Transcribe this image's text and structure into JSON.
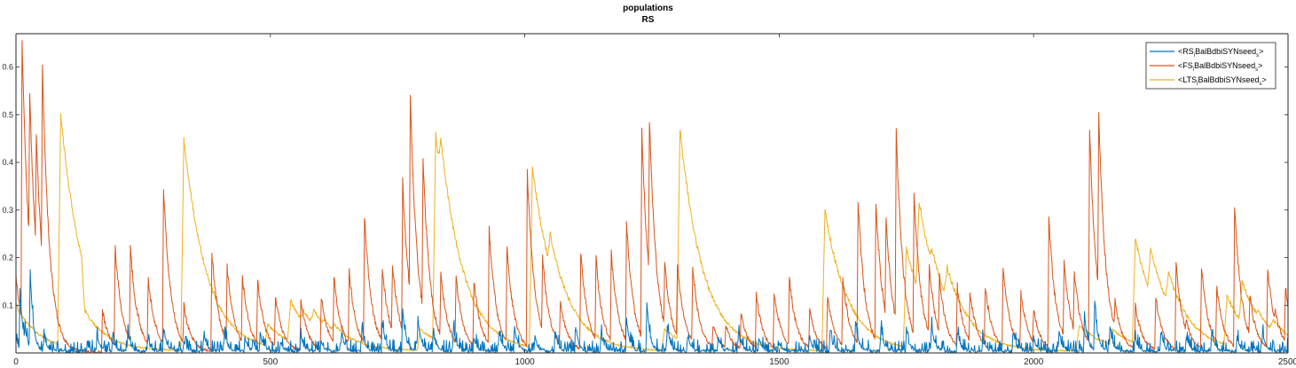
{
  "chart_data": {
    "type": "line",
    "title": "populations",
    "subtitle": "RS",
    "xlabel": "",
    "ylabel": "",
    "xlim": [
      0,
      2500
    ],
    "ylim": [
      0,
      0.67
    ],
    "x_ticks": [
      0,
      500,
      1000,
      1500,
      2000,
      2500
    ],
    "y_ticks": [
      0.1,
      0.2,
      0.3,
      0.4,
      0.5,
      0.6
    ],
    "grid": false,
    "legend_position": "top-right",
    "series": [
      {
        "name": "<RS_{BalBdbiSYNseed_s}>",
        "legend_main": "<RS",
        "legend_sub1": "i",
        "legend_mid": "BalBdbiSYNseed",
        "legend_sub2": "s",
        "legend_end": ">",
        "color": "#0072BD",
        "baseline": 0.0,
        "points": [
          [
            0,
            0.03
          ],
          [
            8,
            0.13
          ],
          [
            18,
            0.05
          ],
          [
            28,
            0.17
          ],
          [
            40,
            0.02
          ],
          [
            55,
            0.03
          ],
          [
            80,
            0.0
          ],
          [
            140,
            0.01
          ],
          [
            160,
            0.03
          ],
          [
            190,
            0.03
          ],
          [
            220,
            0.04
          ],
          [
            260,
            0.02
          ],
          [
            290,
            0.05
          ],
          [
            330,
            0.02
          ],
          [
            370,
            0.03
          ],
          [
            410,
            0.04
          ],
          [
            450,
            0.03
          ],
          [
            480,
            0.04
          ],
          [
            520,
            0.02
          ],
          [
            560,
            0.03
          ],
          [
            600,
            0.02
          ],
          [
            640,
            0.04
          ],
          [
            680,
            0.05
          ],
          [
            720,
            0.06
          ],
          [
            760,
            0.09
          ],
          [
            790,
            0.07
          ],
          [
            820,
            0.04
          ],
          [
            860,
            0.05
          ],
          [
            900,
            0.03
          ],
          [
            950,
            0.04
          ],
          [
            980,
            0.05
          ],
          [
            1020,
            0.03
          ],
          [
            1060,
            0.04
          ],
          [
            1100,
            0.05
          ],
          [
            1150,
            0.04
          ],
          [
            1200,
            0.07
          ],
          [
            1240,
            0.1
          ],
          [
            1280,
            0.05
          ],
          [
            1320,
            0.03
          ],
          [
            1380,
            0.03
          ],
          [
            1420,
            0.04
          ],
          [
            1460,
            0.03
          ],
          [
            1500,
            0.02
          ],
          [
            1560,
            0.03
          ],
          [
            1600,
            0.04
          ],
          [
            1650,
            0.06
          ],
          [
            1700,
            0.05
          ],
          [
            1750,
            0.04
          ],
          [
            1800,
            0.05
          ],
          [
            1850,
            0.04
          ],
          [
            1900,
            0.03
          ],
          [
            1960,
            0.04
          ],
          [
            2000,
            0.03
          ],
          [
            2050,
            0.04
          ],
          [
            2100,
            0.08
          ],
          [
            2120,
            0.1
          ],
          [
            2150,
            0.05
          ],
          [
            2200,
            0.03
          ],
          [
            2250,
            0.04
          ],
          [
            2300,
            0.03
          ],
          [
            2350,
            0.04
          ],
          [
            2400,
            0.03
          ],
          [
            2450,
            0.04
          ],
          [
            2500,
            0.03
          ]
        ]
      },
      {
        "name": "<FS_{BalBdbiSYNseed_s}>",
        "legend_main": "<FS",
        "legend_sub1": "i",
        "legend_mid": "BalBdbiSYNseed",
        "legend_sub2": "s",
        "legend_end": ">",
        "color": "#D95319",
        "baseline": 0.002,
        "points": [
          [
            0,
            0.16
          ],
          [
            12,
            0.66
          ],
          [
            27,
            0.55
          ],
          [
            40,
            0.46
          ],
          [
            52,
            0.6
          ],
          [
            170,
            0.09
          ],
          [
            195,
            0.22
          ],
          [
            225,
            0.22
          ],
          [
            260,
            0.16
          ],
          [
            290,
            0.35
          ],
          [
            330,
            0.1
          ],
          [
            385,
            0.21
          ],
          [
            415,
            0.18
          ],
          [
            445,
            0.16
          ],
          [
            475,
            0.15
          ],
          [
            510,
            0.12
          ],
          [
            560,
            0.11
          ],
          [
            600,
            0.12
          ],
          [
            625,
            0.16
          ],
          [
            655,
            0.17
          ],
          [
            685,
            0.29
          ],
          [
            720,
            0.18
          ],
          [
            740,
            0.19
          ],
          [
            760,
            0.36
          ],
          [
            775,
            0.54
          ],
          [
            800,
            0.41
          ],
          [
            835,
            0.17
          ],
          [
            865,
            0.16
          ],
          [
            900,
            0.15
          ],
          [
            930,
            0.26
          ],
          [
            965,
            0.22
          ],
          [
            1005,
            0.38
          ],
          [
            1035,
            0.2
          ],
          [
            1070,
            0.11
          ],
          [
            1110,
            0.21
          ],
          [
            1140,
            0.2
          ],
          [
            1170,
            0.21
          ],
          [
            1200,
            0.27
          ],
          [
            1230,
            0.47
          ],
          [
            1245,
            0.49
          ],
          [
            1275,
            0.19
          ],
          [
            1300,
            0.19
          ],
          [
            1330,
            0.18
          ],
          [
            1370,
            0.06
          ],
          [
            1395,
            0.06
          ],
          [
            1425,
            0.08
          ],
          [
            1455,
            0.12
          ],
          [
            1490,
            0.13
          ],
          [
            1520,
            0.16
          ],
          [
            1560,
            0.09
          ],
          [
            1595,
            0.12
          ],
          [
            1625,
            0.16
          ],
          [
            1655,
            0.32
          ],
          [
            1690,
            0.32
          ],
          [
            1710,
            0.28
          ],
          [
            1730,
            0.47
          ],
          [
            1765,
            0.33
          ],
          [
            1795,
            0.18
          ],
          [
            1815,
            0.16
          ],
          [
            1850,
            0.14
          ],
          [
            1875,
            0.13
          ],
          [
            1905,
            0.14
          ],
          [
            1940,
            0.18
          ],
          [
            1975,
            0.13
          ],
          [
            2000,
            0.09
          ],
          [
            2030,
            0.28
          ],
          [
            2060,
            0.19
          ],
          [
            2080,
            0.17
          ],
          [
            2110,
            0.47
          ],
          [
            2128,
            0.5
          ],
          [
            2160,
            0.11
          ],
          [
            2200,
            0.1
          ],
          [
            2240,
            0.12
          ],
          [
            2280,
            0.19
          ],
          [
            2300,
            0.07
          ],
          [
            2330,
            0.18
          ],
          [
            2360,
            0.14
          ],
          [
            2395,
            0.31
          ],
          [
            2425,
            0.12
          ],
          [
            2460,
            0.18
          ],
          [
            2475,
            0.09
          ],
          [
            2495,
            0.14
          ]
        ]
      },
      {
        "name": "<LTS_{BalBdbiSYNseed_s}>",
        "legend_main": "<LTS",
        "legend_sub1": "i",
        "legend_mid": "BalBdbiSYNseed",
        "legend_sub2": "s",
        "legend_end": ">",
        "color": "#EDB120",
        "baseline": 0.004,
        "points": [
          [
            0,
            0.1
          ],
          [
            88,
            0.5
          ],
          [
            135,
            0.09
          ],
          [
            330,
            0.45
          ],
          [
            495,
            0.06
          ],
          [
            540,
            0.11
          ],
          [
            565,
            0.09
          ],
          [
            585,
            0.09
          ],
          [
            605,
            0.07
          ],
          [
            625,
            0.06
          ],
          [
            795,
            0.05
          ],
          [
            825,
            0.46
          ],
          [
            835,
            0.45
          ],
          [
            1015,
            0.39
          ],
          [
            1050,
            0.25
          ],
          [
            1275,
            0.05
          ],
          [
            1305,
            0.47
          ],
          [
            1590,
            0.3
          ],
          [
            1750,
            0.22
          ],
          [
            1775,
            0.32
          ],
          [
            1800,
            0.22
          ],
          [
            1830,
            0.18
          ],
          [
            2090,
            0.06
          ],
          [
            2155,
            0.05
          ],
          [
            2200,
            0.24
          ],
          [
            2230,
            0.22
          ],
          [
            2265,
            0.17
          ],
          [
            2380,
            0.12
          ],
          [
            2410,
            0.15
          ],
          [
            2440,
            0.09
          ],
          [
            2470,
            0.07
          ]
        ]
      }
    ]
  }
}
